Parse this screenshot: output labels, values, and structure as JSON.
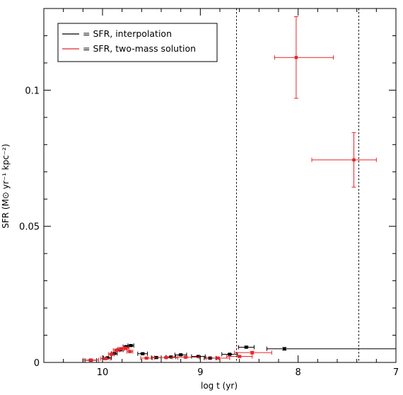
{
  "chart_data": {
    "type": "scatter",
    "title": "",
    "xlabel": "log t (yr)",
    "ylabel": "SFR (M⊙ yr⁻¹ kpc⁻²)",
    "x_axis_reversed": true,
    "xlim": [
      10.6,
      7.0
    ],
    "ylim": [
      0,
      0.13
    ],
    "x_ticks": [
      10,
      9,
      8,
      7
    ],
    "x_tick_labels": [
      "10",
      "9",
      "8",
      "7"
    ],
    "y_ticks": [
      0,
      0.05,
      0.1
    ],
    "y_tick_labels": [
      "0",
      "0.05",
      "0.1"
    ],
    "grid": false,
    "legend_position": "top-left",
    "vertical_lines": [
      8.63,
      7.38
    ],
    "series": [
      {
        "name": "= SFR, interpolation",
        "color": "#000000",
        "points": [
          {
            "x": 10.12,
            "y": 0.0008,
            "xerr": [
              0.06,
              0.06
            ],
            "yerr": 0.0003
          },
          {
            "x": 9.95,
            "y": 0.0017,
            "xerr": [
              0.04,
              0.04
            ],
            "yerr": 0.0003
          },
          {
            "x": 9.88,
            "y": 0.0033,
            "xerr": [
              0.03,
              0.03
            ],
            "yerr": 0.0003
          },
          {
            "x": 9.82,
            "y": 0.0046,
            "xerr": [
              0.03,
              0.03
            ],
            "yerr": 0.0003
          },
          {
            "x": 9.76,
            "y": 0.0058,
            "xerr": [
              0.03,
              0.03
            ],
            "yerr": 0.0003
          },
          {
            "x": 9.71,
            "y": 0.0062,
            "xerr": [
              0.03,
              0.03
            ],
            "yerr": 0.0003
          },
          {
            "x": 9.59,
            "y": 0.0032,
            "xerr": [
              0.05,
              0.05
            ],
            "yerr": 0.0003
          },
          {
            "x": 9.45,
            "y": 0.0018,
            "xerr": [
              0.05,
              0.05
            ],
            "yerr": 0.0003
          },
          {
            "x": 9.3,
            "y": 0.002,
            "xerr": [
              0.05,
              0.05
            ],
            "yerr": 0.0003
          },
          {
            "x": 9.2,
            "y": 0.0028,
            "xerr": [
              0.06,
              0.06
            ],
            "yerr": 0.0003
          },
          {
            "x": 9.02,
            "y": 0.0022,
            "xerr": [
              0.07,
              0.07
            ],
            "yerr": 0.0003
          },
          {
            "x": 8.9,
            "y": 0.0016,
            "xerr": [
              0.06,
              0.06
            ],
            "yerr": 0.0003
          },
          {
            "x": 8.7,
            "y": 0.003,
            "xerr": [
              0.08,
              0.08
            ],
            "yerr": 0.0003
          },
          {
            "x": 8.53,
            "y": 0.0056,
            "xerr": [
              0.08,
              0.08
            ],
            "yerr": 0.0004
          },
          {
            "x": 8.14,
            "y": 0.005,
            "xerr": [
              0.18,
              1.15
            ],
            "yerr": 0.0005
          }
        ]
      },
      {
        "name": "= SFR, two-mass solution",
        "color": "#e8252a",
        "points": [
          {
            "x": 10.12,
            "y": 0.0009,
            "xerr": [
              0.08,
              0.08
            ],
            "yerr": 0.0003
          },
          {
            "x": 9.97,
            "y": 0.0014,
            "xerr": [
              0.05,
              0.05
            ],
            "yerr": 0.0003
          },
          {
            "x": 9.91,
            "y": 0.003,
            "xerr": [
              0.03,
              0.03
            ],
            "yerr": 0.0004
          },
          {
            "x": 9.86,
            "y": 0.0045,
            "xerr": [
              0.03,
              0.03
            ],
            "yerr": 0.0004
          },
          {
            "x": 9.81,
            "y": 0.005,
            "xerr": [
              0.03,
              0.03
            ],
            "yerr": 0.0005
          },
          {
            "x": 9.76,
            "y": 0.0052,
            "xerr": [
              0.03,
              0.03
            ],
            "yerr": 0.0005
          },
          {
            "x": 9.72,
            "y": 0.004,
            "xerr": [
              0.03,
              0.03
            ],
            "yerr": 0.0004
          },
          {
            "x": 9.55,
            "y": 0.0016,
            "xerr": [
              0.06,
              0.06
            ],
            "yerr": 0.0003
          },
          {
            "x": 9.35,
            "y": 0.0018,
            "xerr": [
              0.12,
              0.12
            ],
            "yerr": 0.0003
          },
          {
            "x": 9.15,
            "y": 0.0019,
            "xerr": [
              0.14,
              0.14
            ],
            "yerr": 0.0003
          },
          {
            "x": 8.82,
            "y": 0.0016,
            "xerr": [
              0.12,
              0.12
            ],
            "yerr": 0.0003
          },
          {
            "x": 8.6,
            "y": 0.0022,
            "xerr": [
              0.13,
              0.13
            ],
            "yerr": 0.0004
          },
          {
            "x": 8.47,
            "y": 0.0036,
            "xerr": [
              0.18,
              0.2
            ],
            "yerr": 0.0005
          },
          {
            "x": 8.02,
            "y": 0.112,
            "xerr": [
              0.22,
              0.38
            ],
            "yerr": 0.015
          },
          {
            "x": 7.43,
            "y": 0.0744,
            "xerr": [
              0.43,
              0.23
            ],
            "yerr": 0.01
          }
        ]
      }
    ]
  }
}
